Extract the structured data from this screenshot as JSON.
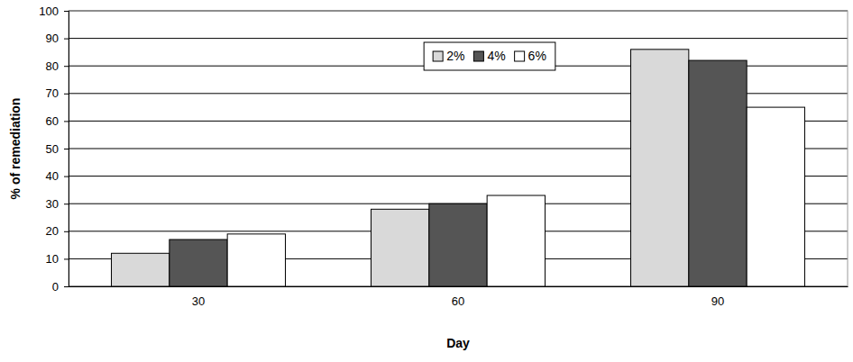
{
  "chart_data": {
    "type": "bar",
    "x_label": "Day",
    "y_label": "% of remediation",
    "categories": [
      "30",
      "60",
      "90"
    ],
    "series": [
      {
        "name": "2%",
        "color": "#d9d9d9",
        "values": [
          12,
          28,
          86
        ]
      },
      {
        "name": "4%",
        "color": "#555555",
        "values": [
          17,
          30,
          82
        ]
      },
      {
        "name": "6%",
        "color": "#ffffff",
        "values": [
          19,
          33,
          65
        ]
      }
    ],
    "ylim": [
      0,
      100
    ],
    "yticks": [
      0,
      10,
      20,
      30,
      40,
      50,
      60,
      70,
      80,
      90,
      100
    ],
    "grid": true,
    "legend": "top"
  }
}
